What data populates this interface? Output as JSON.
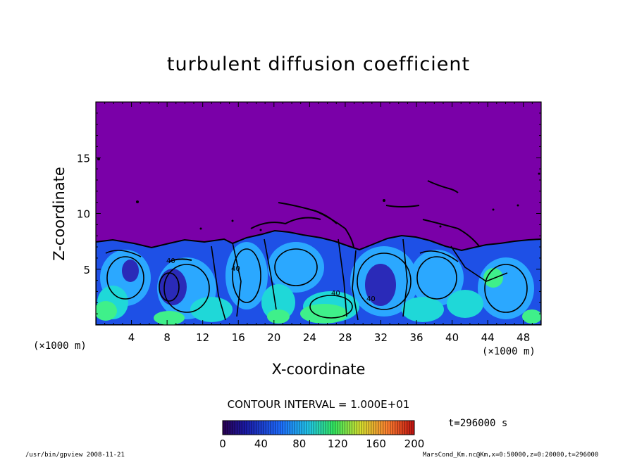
{
  "chart_data": {
    "type": "heatmap",
    "title": "turbulent diffusion coefficient",
    "xlabel": "X-coordinate",
    "ylabel": "Z-coordinate",
    "x_unit": "(×1000 m)",
    "x_ticks": [
      "4",
      "8",
      "12",
      "16",
      "20",
      "24",
      "28",
      "32",
      "36",
      "40",
      "44",
      "48"
    ],
    "y_ticks": [
      "5",
      "10",
      "15"
    ],
    "xlim": [
      0,
      50
    ],
    "ylim": [
      0,
      20
    ],
    "contour_interval": "CONTOUR INTERVAL = 1.000E+01",
    "time": "t=296000 s",
    "colorbar": {
      "ticks": [
        "0",
        "40",
        "80",
        "120",
        "160",
        "200"
      ],
      "range": [
        0,
        200
      ]
    },
    "fields": {
      "background_value": 0,
      "turbulent_layer_top_km": 7.5,
      "typical_layer_value": 40,
      "peak_value": 110,
      "labeled_contours": [
        "40",
        "40",
        "40",
        "40"
      ]
    },
    "colors": {
      "background": "#7a00a8",
      "layer_blue": "#1e50e6",
      "layer_light": "#2ba8ff",
      "layer_cyan": "#1fd8d8",
      "layer_green": "#3ff08a",
      "contour": "#000000"
    }
  },
  "footer": {
    "left": "/usr/bin/gpview   2008-11-21",
    "right": "MarsCond_Km.nc@Km,x=0:50000,z=0:20000,t=296000"
  }
}
